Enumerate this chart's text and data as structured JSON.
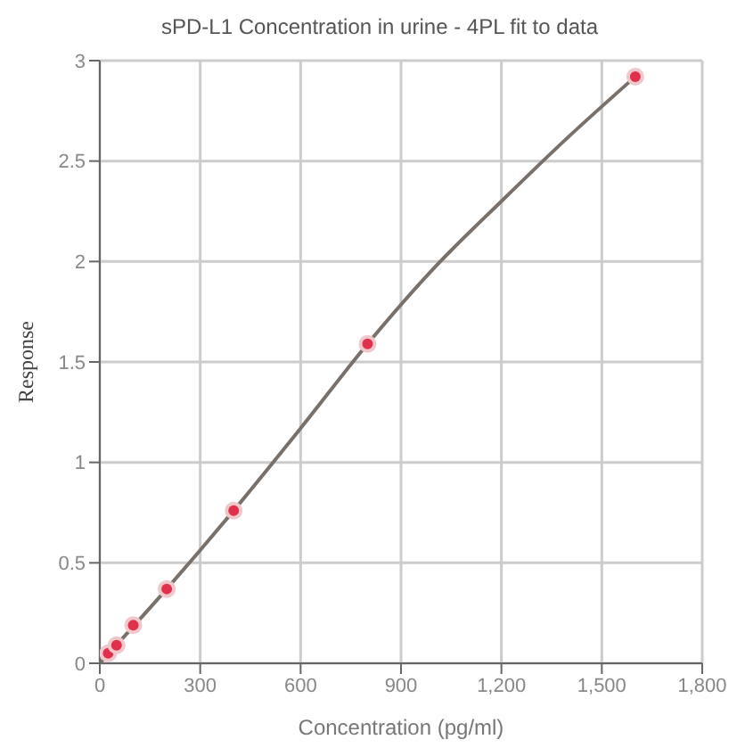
{
  "chart_data": {
    "type": "scatter",
    "title": "sPD-L1 Concentration in urine  - 4PL fit to data",
    "xlabel": "Concentration (pg/ml)",
    "ylabel": "Response",
    "series": [
      {
        "color": "#e0304a",
        "x": [
          25,
          50,
          100,
          200,
          400,
          800,
          1600
        ],
        "values": [
          0.05,
          0.09,
          0.19,
          0.37,
          0.76,
          1.59,
          2.92
        ]
      },
      {
        "type": "line",
        "color": "#7a706a",
        "x": [
          0,
          200,
          400,
          600,
          800,
          1000,
          1200,
          1400,
          1600
        ],
        "values": [
          0,
          0.37,
          0.76,
          1.17,
          1.59,
          1.97,
          2.3,
          2.62,
          2.92
        ]
      }
    ],
    "xlim": [
      0,
      1800
    ],
    "xticks": [
      {
        "value": 0,
        "label": "0"
      },
      {
        "value": 300,
        "label": "300"
      },
      {
        "value": 600,
        "label": "600"
      },
      {
        "value": 900,
        "label": "900"
      },
      {
        "value": 1200,
        "label": "1,200"
      },
      {
        "value": 1500,
        "label": "1,500"
      },
      {
        "value": 1800,
        "label": "1,800"
      }
    ],
    "ylim": [
      0,
      3
    ],
    "yticks": [
      0,
      0.5,
      1,
      1.5,
      2,
      2.5,
      3
    ],
    "grid": true,
    "legend": false
  }
}
